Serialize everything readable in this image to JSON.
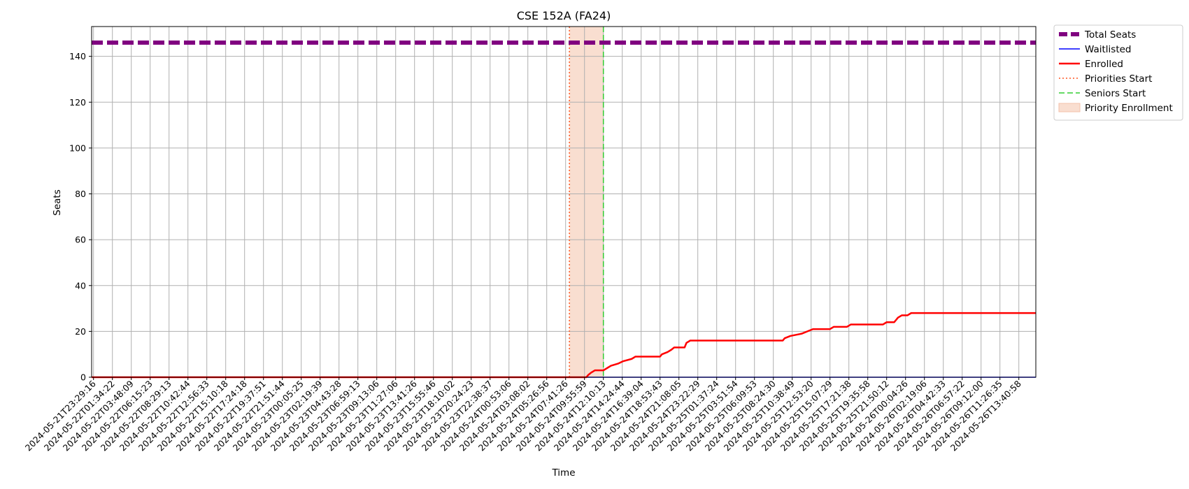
{
  "chart_data": {
    "type": "line",
    "title": "CSE 152A (FA24)",
    "xlabel": "Time",
    "ylabel": "Seats",
    "ylim": [
      0,
      153
    ],
    "y_ticks": [
      0,
      20,
      40,
      60,
      80,
      100,
      120,
      140
    ],
    "x_ticks": [
      "2024-05-21T23:29:16",
      "2024-05-22T01:34:22",
      "2024-05-22T03:48:09",
      "2024-05-22T06:15:23",
      "2024-05-22T08:29:13",
      "2024-05-22T10:42:44",
      "2024-05-22T12:56:33",
      "2024-05-22T15:10:18",
      "2024-05-22T17:24:18",
      "2024-05-22T19:37:51",
      "2024-05-22T21:51:44",
      "2024-05-23T00:05:25",
      "2024-05-23T02:19:39",
      "2024-05-23T04:43:28",
      "2024-05-23T06:59:13",
      "2024-05-23T09:13:06",
      "2024-05-23T11:27:06",
      "2024-05-23T13:41:26",
      "2024-05-23T15:55:46",
      "2024-05-23T18:10:02",
      "2024-05-23T20:24:23",
      "2024-05-23T22:38:37",
      "2024-05-24T00:53:06",
      "2024-05-24T03:08:02",
      "2024-05-24T05:26:56",
      "2024-05-24T07:41:26",
      "2024-05-24T09:55:59",
      "2024-05-24T12:10:13",
      "2024-05-24T14:24:44",
      "2024-05-24T16:39:04",
      "2024-05-24T18:53:43",
      "2024-05-24T21:08:05",
      "2024-05-24T23:22:29",
      "2024-05-25T01:37:24",
      "2024-05-25T03:51:54",
      "2024-05-25T06:09:53",
      "2024-05-25T08:24:30",
      "2024-05-25T10:38:49",
      "2024-05-25T12:53:20",
      "2024-05-25T15:07:29",
      "2024-05-25T17:21:38",
      "2024-05-25T19:35:58",
      "2024-05-25T21:50:12",
      "2024-05-26T00:04:26",
      "2024-05-26T02:19:06",
      "2024-05-26T04:42:33",
      "2024-05-26T06:57:22",
      "2024-05-26T09:12:00",
      "2024-05-26T11:26:35",
      "2024-05-26T13:40:58"
    ],
    "xlim_ticks": [
      -0.1,
      49.9
    ],
    "grid": true,
    "legend_placement": "outside-top-right",
    "series": [
      {
        "name": "Total Seats",
        "style": "dashed-thick",
        "color": "#800080",
        "points": [
          [
            -0.1,
            146
          ],
          [
            49.9,
            146
          ]
        ]
      },
      {
        "name": "Waitlisted",
        "style": "solid-thin",
        "color": "#0000ff",
        "points": [
          [
            -0.1,
            0
          ],
          [
            49.9,
            0
          ]
        ]
      },
      {
        "name": "Enrolled",
        "style": "solid",
        "color": "#ff0000",
        "points": [
          [
            -0.1,
            0
          ],
          [
            25.8,
            0
          ],
          [
            26.1,
            0
          ],
          [
            26.2,
            1
          ],
          [
            26.35,
            2
          ],
          [
            26.55,
            3
          ],
          [
            27.0,
            3
          ],
          [
            27.2,
            4
          ],
          [
            27.4,
            5
          ],
          [
            27.8,
            6
          ],
          [
            28.05,
            7
          ],
          [
            28.5,
            8
          ],
          [
            28.7,
            9
          ],
          [
            29.1,
            9
          ],
          [
            30.0,
            9
          ],
          [
            30.1,
            10
          ],
          [
            30.4,
            11
          ],
          [
            30.6,
            12
          ],
          [
            30.75,
            13
          ],
          [
            31.3,
            13
          ],
          [
            31.4,
            15
          ],
          [
            31.6,
            16
          ],
          [
            33.0,
            16
          ],
          [
            35.0,
            16
          ],
          [
            36.0,
            16
          ],
          [
            36.5,
            16
          ],
          [
            36.6,
            17
          ],
          [
            36.9,
            18
          ],
          [
            37.5,
            19
          ],
          [
            37.8,
            20
          ],
          [
            38.1,
            21
          ],
          [
            39.0,
            21
          ],
          [
            39.2,
            22
          ],
          [
            39.9,
            22
          ],
          [
            40.1,
            23
          ],
          [
            41.0,
            23
          ],
          [
            41.8,
            23
          ],
          [
            42.0,
            24
          ],
          [
            42.4,
            24
          ],
          [
            42.6,
            26
          ],
          [
            42.8,
            27
          ],
          [
            43.1,
            27
          ],
          [
            43.3,
            28
          ],
          [
            44.0,
            28
          ],
          [
            46.0,
            28
          ],
          [
            49.9,
            28
          ]
        ]
      }
    ],
    "markers": [
      {
        "name": "Priorities Start",
        "style": "dotted",
        "color": "#ff5722",
        "x": 25.2
      },
      {
        "name": "Seniors Start",
        "style": "dashed",
        "color": "#32cd32",
        "x": 27.0
      }
    ],
    "spans": [
      {
        "name": "Priority Enrollment",
        "color": "#f4c2aa",
        "x_start": 25.2,
        "x_end": 27.0
      }
    ],
    "legend": [
      {
        "label": "Total Seats",
        "kind": "dashed-thick",
        "color": "#800080"
      },
      {
        "label": "Waitlisted",
        "kind": "solid-thin",
        "color": "#0000ff"
      },
      {
        "label": "Enrolled",
        "kind": "solid",
        "color": "#ff0000"
      },
      {
        "label": "Priorities Start",
        "kind": "dotted",
        "color": "#ff5722"
      },
      {
        "label": "Seniors Start",
        "kind": "dashed",
        "color": "#32cd32"
      },
      {
        "label": "Priority Enrollment",
        "kind": "patch",
        "color": "#f4c2aa"
      }
    ]
  }
}
